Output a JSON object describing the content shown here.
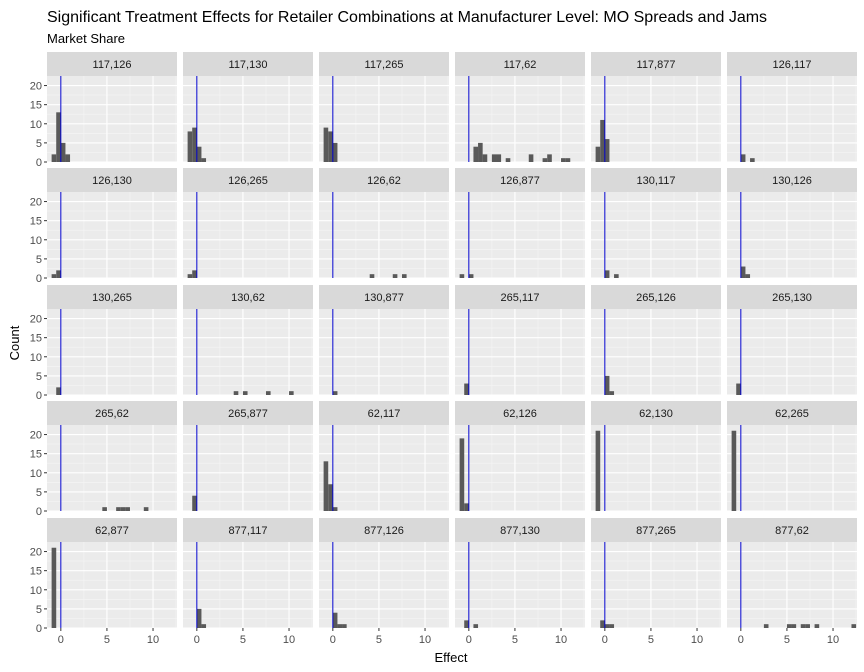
{
  "chart_data": {
    "type": "bar",
    "title": "Significant Treatment Effects for Retailer Combinations at Manufacturer Level: MO Spreads and Jams",
    "subtitle": "Market Share",
    "xlabel": "Effect",
    "ylabel": "Count",
    "xlim": [
      -1.5,
      12.6
    ],
    "ylim": [
      0,
      22.5
    ],
    "x_ticks": [
      0,
      5,
      10
    ],
    "y_ticks": [
      0,
      5,
      10,
      15,
      20
    ],
    "bin_width": 0.5,
    "reference_line": 0,
    "colors": {
      "bars": "#595959",
      "reference_line": "#0000cc",
      "panel_background": "#ebebeb",
      "strip_background": "#d9d9d9",
      "grid_major": "#ffffff"
    },
    "grid": true,
    "panels": [
      {
        "label": "117,126",
        "bars": [
          {
            "x": -0.75,
            "y": 2
          },
          {
            "x": -0.25,
            "y": 13
          },
          {
            "x": 0.25,
            "y": 5
          },
          {
            "x": 0.75,
            "y": 2
          }
        ]
      },
      {
        "label": "117,130",
        "bars": [
          {
            "x": -0.75,
            "y": 8
          },
          {
            "x": -0.25,
            "y": 9
          },
          {
            "x": 0.25,
            "y": 4
          },
          {
            "x": 0.75,
            "y": 1
          }
        ]
      },
      {
        "label": "117,265",
        "bars": [
          {
            "x": -0.75,
            "y": 9
          },
          {
            "x": -0.25,
            "y": 8
          },
          {
            "x": 0.25,
            "y": 5
          }
        ]
      },
      {
        "label": "117,62",
        "bars": [
          {
            "x": 0.75,
            "y": 4
          },
          {
            "x": 1.25,
            "y": 5
          },
          {
            "x": 1.75,
            "y": 2
          },
          {
            "x": 2.75,
            "y": 2
          },
          {
            "x": 3.25,
            "y": 2
          },
          {
            "x": 4.25,
            "y": 1
          },
          {
            "x": 6.75,
            "y": 2
          },
          {
            "x": 8.25,
            "y": 1
          },
          {
            "x": 8.75,
            "y": 2
          },
          {
            "x": 10.25,
            "y": 1
          },
          {
            "x": 10.75,
            "y": 1
          }
        ]
      },
      {
        "label": "117,877",
        "bars": [
          {
            "x": -0.75,
            "y": 4
          },
          {
            "x": -0.25,
            "y": 11
          },
          {
            "x": 0.25,
            "y": 6
          }
        ]
      },
      {
        "label": "126,117",
        "bars": [
          {
            "x": 0.25,
            "y": 2
          },
          {
            "x": 1.25,
            "y": 1
          }
        ]
      },
      {
        "label": "126,130",
        "bars": [
          {
            "x": -0.75,
            "y": 1
          },
          {
            "x": -0.25,
            "y": 2
          }
        ]
      },
      {
        "label": "126,265",
        "bars": [
          {
            "x": -0.75,
            "y": 1
          },
          {
            "x": -0.25,
            "y": 2
          }
        ]
      },
      {
        "label": "126,62",
        "bars": [
          {
            "x": 4.25,
            "y": 1
          },
          {
            "x": 6.75,
            "y": 1
          },
          {
            "x": 7.75,
            "y": 1
          }
        ]
      },
      {
        "label": "126,877",
        "bars": [
          {
            "x": -0.75,
            "y": 1
          },
          {
            "x": 0.25,
            "y": 1
          }
        ]
      },
      {
        "label": "130,117",
        "bars": [
          {
            "x": 0.25,
            "y": 2
          },
          {
            "x": 1.25,
            "y": 1
          }
        ]
      },
      {
        "label": "130,126",
        "bars": [
          {
            "x": 0.25,
            "y": 3
          },
          {
            "x": 0.75,
            "y": 1
          }
        ]
      },
      {
        "label": "130,265",
        "bars": [
          {
            "x": -0.25,
            "y": 2
          }
        ]
      },
      {
        "label": "130,62",
        "bars": [
          {
            "x": 4.25,
            "y": 1
          },
          {
            "x": 5.25,
            "y": 1
          },
          {
            "x": 7.75,
            "y": 1
          },
          {
            "x": 10.25,
            "y": 1
          }
        ]
      },
      {
        "label": "130,877",
        "bars": [
          {
            "x": 0.25,
            "y": 1
          }
        ]
      },
      {
        "label": "265,117",
        "bars": [
          {
            "x": -0.25,
            "y": 3
          }
        ]
      },
      {
        "label": "265,126",
        "bars": [
          {
            "x": 0.25,
            "y": 5
          },
          {
            "x": 0.75,
            "y": 1
          }
        ]
      },
      {
        "label": "265,130",
        "bars": [
          {
            "x": -0.25,
            "y": 3
          }
        ]
      },
      {
        "label": "265,62",
        "bars": [
          {
            "x": 4.75,
            "y": 1
          },
          {
            "x": 6.25,
            "y": 1
          },
          {
            "x": 6.75,
            "y": 1
          },
          {
            "x": 7.25,
            "y": 1
          },
          {
            "x": 9.25,
            "y": 1
          }
        ]
      },
      {
        "label": "265,877",
        "bars": [
          {
            "x": -0.25,
            "y": 4
          }
        ]
      },
      {
        "label": "62,117",
        "bars": [
          {
            "x": -0.75,
            "y": 13
          },
          {
            "x": -0.25,
            "y": 7
          },
          {
            "x": 0.25,
            "y": 1
          }
        ]
      },
      {
        "label": "62,126",
        "bars": [
          {
            "x": -0.75,
            "y": 19
          },
          {
            "x": -0.25,
            "y": 2
          }
        ]
      },
      {
        "label": "62,130",
        "bars": [
          {
            "x": -0.75,
            "y": 21
          }
        ]
      },
      {
        "label": "62,265",
        "bars": [
          {
            "x": -0.75,
            "y": 21
          }
        ]
      },
      {
        "label": "62,877",
        "bars": [
          {
            "x": -0.75,
            "y": 21
          }
        ]
      },
      {
        "label": "877,117",
        "bars": [
          {
            "x": 0.25,
            "y": 5
          },
          {
            "x": 0.75,
            "y": 1
          }
        ]
      },
      {
        "label": "877,126",
        "bars": [
          {
            "x": 0.25,
            "y": 4
          },
          {
            "x": 0.75,
            "y": 1
          },
          {
            "x": 1.25,
            "y": 1
          }
        ]
      },
      {
        "label": "877,130",
        "bars": [
          {
            "x": -0.25,
            "y": 2
          },
          {
            "x": 0.75,
            "y": 1
          }
        ]
      },
      {
        "label": "877,265",
        "bars": [
          {
            "x": -0.25,
            "y": 2
          },
          {
            "x": 0.25,
            "y": 1
          },
          {
            "x": 0.75,
            "y": 1
          }
        ]
      },
      {
        "label": "877,62",
        "bars": [
          {
            "x": 2.75,
            "y": 1
          },
          {
            "x": 5.25,
            "y": 1
          },
          {
            "x": 5.75,
            "y": 1
          },
          {
            "x": 6.75,
            "y": 1
          },
          {
            "x": 7.25,
            "y": 1
          },
          {
            "x": 8.25,
            "y": 1
          },
          {
            "x": 12.25,
            "y": 1
          }
        ]
      }
    ]
  }
}
